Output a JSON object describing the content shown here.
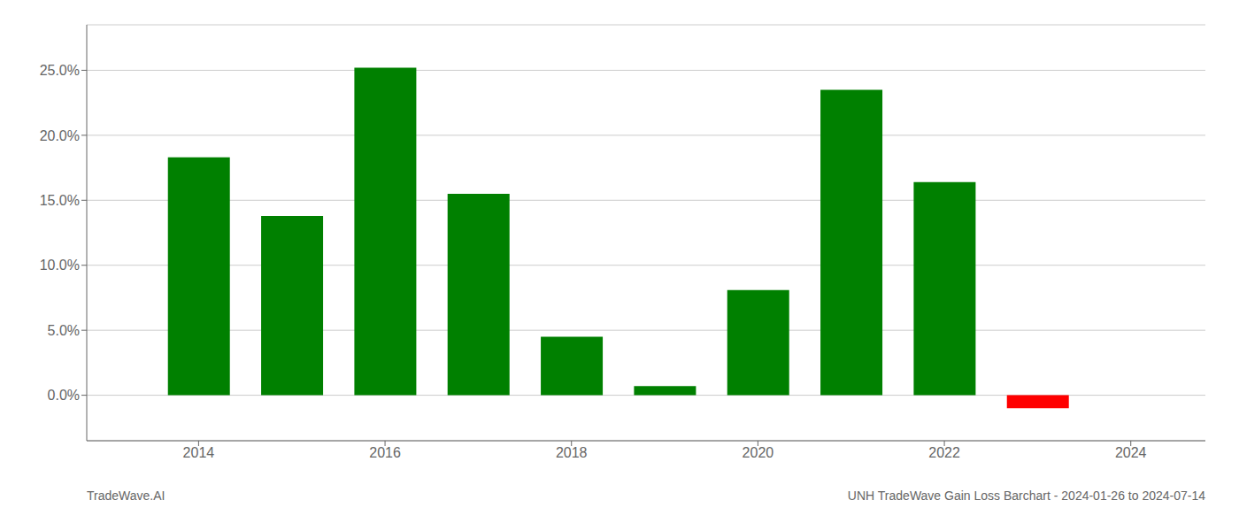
{
  "chart_data": {
    "type": "bar",
    "x": [
      2014,
      2015,
      2016,
      2017,
      2018,
      2019,
      2020,
      2021,
      2022,
      2023
    ],
    "values": [
      0.183,
      0.138,
      0.252,
      0.155,
      0.045,
      0.007,
      0.081,
      0.235,
      0.164,
      -0.01
    ],
    "colors": [
      "#008000",
      "#008000",
      "#008000",
      "#008000",
      "#008000",
      "#008000",
      "#008000",
      "#008000",
      "#008000",
      "#ff0000"
    ],
    "xlim": [
      2012.8,
      2024.8
    ],
    "xticks": [
      2014,
      2016,
      2018,
      2020,
      2022,
      2024
    ],
    "ylim": [
      -0.035,
      0.285
    ],
    "yticks": [
      {
        "value": 0.0,
        "label": "0.0%"
      },
      {
        "value": 0.05,
        "label": "5.0%"
      },
      {
        "value": 0.1,
        "label": "10.0%"
      },
      {
        "value": 0.15,
        "label": "15.0%"
      },
      {
        "value": 0.2,
        "label": "20.0%"
      },
      {
        "value": 0.25,
        "label": "25.0%"
      }
    ],
    "grid": true,
    "annotations": [
      "TradeWave.AI",
      "UNH TradeWave Gain Loss Barchart - 2024-01-26 to 2024-07-14"
    ]
  }
}
